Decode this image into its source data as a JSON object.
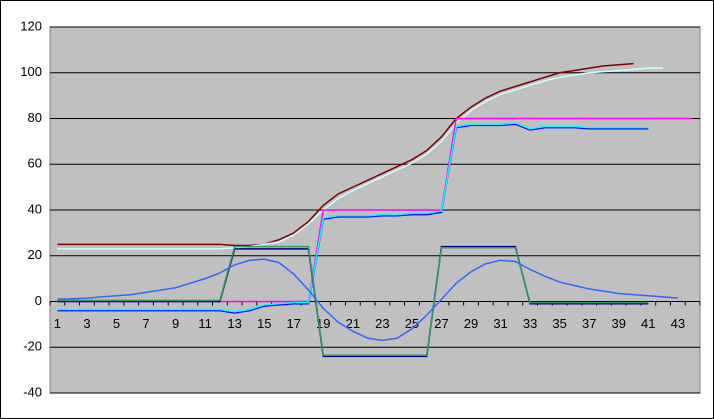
{
  "chart_data": {
    "type": "line",
    "categories": [
      1,
      null,
      3,
      null,
      5,
      null,
      7,
      null,
      9,
      null,
      11,
      null,
      13,
      null,
      15,
      null,
      17,
      null,
      19,
      null,
      21,
      null,
      23,
      null,
      25,
      null,
      27,
      null,
      29,
      null,
      31,
      null,
      33,
      null,
      35,
      null,
      37,
      null,
      39,
      null,
      41,
      null,
      43,
      null
    ],
    "ylim": [
      -40,
      120
    ],
    "yticks": [
      -40,
      -20,
      0,
      20,
      40,
      60,
      80,
      100,
      120
    ],
    "grid": true,
    "background": "#c0c0c0",
    "series": [
      {
        "color": "#800000",
        "values": [
          25,
          25,
          25,
          25,
          25,
          25,
          25,
          25,
          25,
          25,
          25,
          25,
          24.5,
          24.5,
          25,
          27,
          30,
          35,
          42,
          47,
          50,
          53,
          56,
          59,
          62,
          66,
          72,
          80,
          85,
          89,
          92,
          94,
          96,
          98,
          100,
          101,
          102,
          103,
          103.5,
          104,
          null,
          null,
          null,
          null
        ]
      },
      {
        "color": "#ccffff",
        "values": [
          23,
          23,
          23,
          23,
          23,
          23,
          23,
          23,
          23,
          23,
          23,
          23,
          23.5,
          24,
          25,
          26,
          29,
          34,
          40,
          45,
          48.5,
          51.5,
          54.5,
          57.5,
          60.5,
          64.5,
          70,
          78,
          83.5,
          87.5,
          90.5,
          92.5,
          94.5,
          96.5,
          98,
          99,
          100,
          100.5,
          101,
          101.5,
          102,
          102,
          null,
          null
        ]
      },
      {
        "color": "#ff00ff",
        "values": [
          0,
          0,
          0,
          0,
          0,
          0,
          0,
          0,
          0,
          0,
          0,
          0,
          0,
          0,
          0,
          0,
          0,
          0,
          40,
          40,
          40,
          40,
          40,
          40,
          40,
          40,
          40,
          80,
          80,
          80,
          80,
          80,
          80,
          80,
          80,
          80,
          80,
          80,
          80,
          80,
          80,
          80,
          80,
          80
        ]
      },
      {
        "color": "#0000ff",
        "values": [
          -4,
          -4,
          -4,
          -4,
          -4,
          -4,
          -4,
          -4,
          -4,
          -4,
          -4,
          -4,
          -5,
          -4,
          -2,
          -1.5,
          -1,
          -1,
          36,
          37,
          37,
          37,
          37.5,
          37.5,
          38,
          38,
          39,
          76,
          77,
          77,
          77,
          77.5,
          75,
          76,
          76,
          76,
          75.5,
          75.5,
          75.5,
          75.5,
          75.5,
          null,
          null,
          null
        ]
      },
      {
        "color": "#00ffff",
        "values": [
          -3.5,
          -3.5,
          -3.5,
          -3.5,
          -3.5,
          -3.5,
          -3.5,
          -3.5,
          -3.5,
          -3.5,
          -3.5,
          -3.5,
          -4.5,
          -3.5,
          -1.5,
          -1,
          -0.5,
          -0.5,
          36.5,
          37.5,
          37.5,
          37.5,
          38,
          38,
          38.5,
          38.5,
          39.5,
          76.5,
          77.5,
          77.5,
          77.5,
          78,
          75.5,
          76.5,
          76.5,
          76.5,
          76,
          76,
          76,
          76,
          76,
          null,
          null,
          null
        ]
      },
      {
        "color": "#000080",
        "values": [
          0,
          0,
          0,
          0,
          0,
          0,
          0,
          0,
          0,
          0,
          0,
          0,
          23,
          23,
          23,
          23,
          23,
          23,
          -24,
          -24,
          -24,
          -24,
          -24,
          -24,
          -24,
          -24,
          24,
          24,
          24,
          24,
          24,
          24,
          -1,
          -1,
          -1,
          -1,
          -1,
          -1,
          -1,
          -1,
          -1,
          null,
          null,
          null
        ]
      },
      {
        "color": "#339966",
        "values": [
          0.5,
          0.5,
          0.5,
          0.5,
          0.5,
          0.5,
          0.5,
          0.5,
          0.5,
          0.5,
          0.5,
          0.5,
          24,
          24,
          24,
          24,
          24,
          24,
          -23.5,
          -23.5,
          -23.5,
          -23.5,
          -23.5,
          -23.5,
          -23.5,
          -23.5,
          23.5,
          23.5,
          23.5,
          23.5,
          23.5,
          23.5,
          -0.5,
          -0.5,
          -0.5,
          -0.5,
          -0.5,
          -0.5,
          -0.5,
          -0.5,
          -0.5,
          null,
          null,
          null
        ]
      },
      {
        "color": "#3366ff",
        "values": [
          1,
          1.2,
          1.5,
          2,
          2.5,
          3,
          4,
          5,
          6,
          8,
          10,
          12.5,
          16,
          18,
          18.5,
          17,
          12,
          5,
          -3,
          -9,
          -13,
          -16,
          -17,
          -16,
          -12,
          -6,
          1,
          8,
          13,
          16.5,
          18,
          17.5,
          14,
          11,
          8.5,
          7,
          5.5,
          4.5,
          3.5,
          3,
          2.5,
          2,
          1.5,
          null
        ]
      }
    ]
  }
}
